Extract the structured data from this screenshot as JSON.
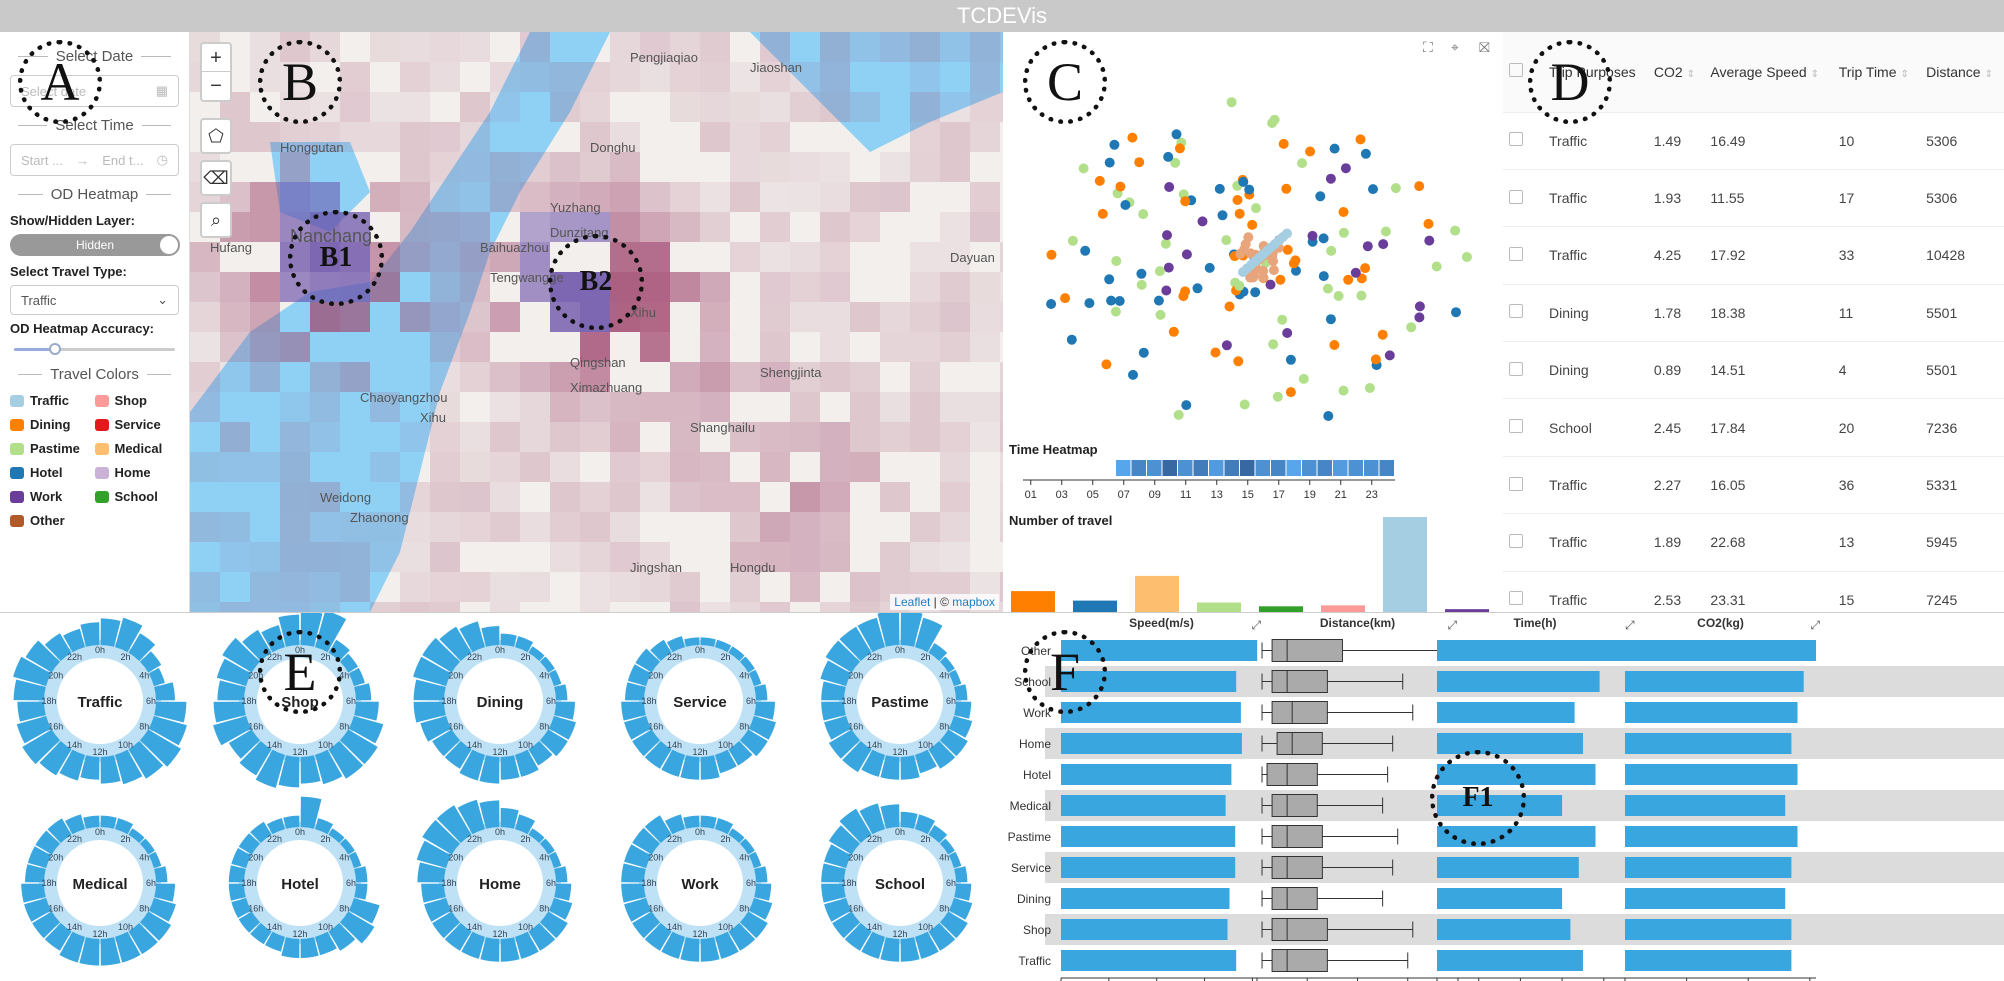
{
  "app": {
    "title": "TCDEVis"
  },
  "controls": {
    "select_date_title": "Select Date",
    "date_placeholder": "Select date",
    "select_time_title": "Select Time",
    "time_start": "Start ...",
    "time_arrow": "→",
    "time_end": "End t...",
    "od_heatmap_title": "OD Heatmap",
    "show_hidden_label": "Show/Hidden Layer:",
    "toggle_value": "Hidden",
    "travel_type_label": "Select Travel Type:",
    "travel_type_value": "Traffic",
    "accuracy_label": "OD Heatmap Accuracy:",
    "accuracy_level": 0.25,
    "travel_colors_title": "Travel Colors"
  },
  "categories": [
    {
      "name": "Traffic",
      "color": "#a6cee3"
    },
    {
      "name": "Shop",
      "color": "#fb9a99"
    },
    {
      "name": "Dining",
      "color": "#ff7f00"
    },
    {
      "name": "Service",
      "color": "#e31a1c"
    },
    {
      "name": "Pastime",
      "color": "#b2df8a"
    },
    {
      "name": "Medical",
      "color": "#fdbf6f"
    },
    {
      "name": "Hotel",
      "color": "#1f78b4"
    },
    {
      "name": "Home",
      "color": "#cab2d6"
    },
    {
      "name": "Work",
      "color": "#6a3d9a"
    },
    {
      "name": "School",
      "color": "#33a02c"
    },
    {
      "name": "Other",
      "color": "#b15928"
    }
  ],
  "map": {
    "zoom_in": "+",
    "zoom_out": "−",
    "place_labels": [
      "Pengjiaqiao",
      "Jiaoshan",
      "Honggutan",
      "Donghu",
      "Nanchang",
      "Yuzhang",
      "Dunzitang",
      "Baihuazhou",
      "Tengwangge",
      "Xihu",
      "Dayuan",
      "Qingshan",
      "Ximazhuang",
      "Shengjinta",
      "Hufang",
      "Chaoyangzhou",
      "Xihu",
      "Shanghailu",
      "Weidong",
      "Zhaonong",
      "Jingshan",
      "Hongdu"
    ],
    "attribution_leaflet": "Leaflet",
    "attribution_sep": " | © ",
    "attribution_mapbox": "mapbox"
  },
  "time_heatmap": {
    "title": "Time Heatmap",
    "ticks": [
      "01",
      "03",
      "05",
      "07",
      "09",
      "11",
      "13",
      "15",
      "17",
      "19",
      "21",
      "23"
    ],
    "values": [
      0,
      0,
      0,
      0,
      0,
      0,
      0.3,
      0.6,
      0.5,
      0.9,
      0.5,
      0.7,
      0.4,
      0.7,
      0.9,
      0.5,
      0.6,
      0.3,
      0.5,
      0.6,
      0.4,
      0.5,
      0.5,
      0.6
    ]
  },
  "number_of_travel": {
    "title": "Number of travel",
    "values": [
      {
        "category": "Dining",
        "value": 22
      },
      {
        "category": "Hotel",
        "value": 12
      },
      {
        "category": "Medical",
        "value": 38
      },
      {
        "category": "Pastime",
        "value": 10
      },
      {
        "category": "School",
        "value": 6
      },
      {
        "category": "Shop",
        "value": 7
      },
      {
        "category": "Traffic",
        "value": 100
      },
      {
        "category": "Work",
        "value": 3
      }
    ]
  },
  "table": {
    "headers": [
      "Trip Purposes",
      "CO2",
      "Average Speed",
      "Trip Time",
      "Distance"
    ],
    "rows": [
      [
        "Traffic",
        "1.49",
        "16.49",
        "10",
        "5306"
      ],
      [
        "Traffic",
        "1.93",
        "11.55",
        "17",
        "5306"
      ],
      [
        "Traffic",
        "4.25",
        "17.92",
        "33",
        "10428"
      ],
      [
        "Dining",
        "1.78",
        "18.38",
        "11",
        "5501"
      ],
      [
        "Dining",
        "0.89",
        "14.51",
        "4",
        "5501"
      ],
      [
        "School",
        "2.45",
        "17.84",
        "20",
        "7236"
      ],
      [
        "Traffic",
        "2.27",
        "16.05",
        "36",
        "5331"
      ],
      [
        "Traffic",
        "1.89",
        "22.68",
        "13",
        "5945"
      ],
      [
        "Traffic",
        "2.53",
        "23.31",
        "15",
        "7245"
      ]
    ]
  },
  "radial": {
    "hour_labels": [
      "0h",
      "2h",
      "4h",
      "6h",
      "8h",
      "10h",
      "12h",
      "14h",
      "16h",
      "18h",
      "20h",
      "22h"
    ],
    "charts": [
      {
        "name": "Traffic",
        "values": [
          0.7,
          0.8,
          0.6,
          0.4,
          0.3,
          0.5,
          0.8,
          0.9,
          1.0,
          0.9,
          0.8,
          0.7,
          0.6,
          0.7,
          0.8,
          0.9,
          0.8,
          0.7,
          0.8,
          0.9,
          0.8,
          0.6,
          0.5,
          0.6
        ]
      },
      {
        "name": "Shop",
        "values": [
          0.9,
          1.0,
          0.4,
          0.3,
          0.3,
          0.4,
          0.6,
          0.8,
          0.9,
          0.9,
          0.8,
          0.7,
          0.8,
          0.9,
          0.8,
          0.7,
          0.9,
          0.8,
          0.7,
          0.8,
          0.9,
          0.7,
          0.6,
          0.8
        ]
      },
      {
        "name": "Dining",
        "values": [
          0.3,
          0.3,
          0.2,
          0.2,
          0.2,
          0.3,
          0.5,
          0.6,
          0.6,
          0.5,
          0.6,
          0.6,
          0.7,
          0.7,
          0.6,
          0.6,
          0.7,
          0.8,
          0.8,
          0.9,
          0.9,
          0.8,
          0.7,
          0.5
        ]
      },
      {
        "name": "Service",
        "values": [
          0.2,
          0.2,
          0.2,
          0.2,
          0.2,
          0.3,
          0.5,
          0.6,
          0.6,
          0.5,
          0.5,
          0.6,
          0.6,
          0.6,
          0.6,
          0.6,
          0.6,
          0.6,
          0.5,
          0.5,
          0.5,
          0.4,
          0.3,
          0.2
        ]
      },
      {
        "name": "Pastime",
        "values": [
          0.9,
          0.8,
          0.3,
          0.2,
          0.2,
          0.3,
          0.4,
          0.5,
          0.6,
          0.6,
          0.5,
          0.6,
          0.6,
          0.6,
          0.7,
          0.7,
          0.6,
          0.6,
          0.6,
          0.7,
          0.8,
          0.8,
          0.8,
          0.9
        ]
      },
      {
        "name": "Medical",
        "values": [
          0.3,
          0.3,
          0.2,
          0.2,
          0.2,
          0.3,
          0.5,
          0.6,
          0.7,
          0.7,
          0.7,
          0.7,
          0.7,
          0.7,
          0.6,
          0.6,
          0.6,
          0.6,
          0.5,
          0.5,
          0.5,
          0.5,
          0.4,
          0.3
        ]
      },
      {
        "name": "Hotel",
        "values": [
          0.8,
          0.3,
          0.2,
          0.2,
          0.2,
          0.3,
          0.3,
          0.7,
          0.8,
          0.6,
          0.5,
          0.5,
          0.5,
          0.4,
          0.4,
          0.4,
          0.4,
          0.4,
          0.4,
          0.4,
          0.4,
          0.4,
          0.3,
          0.3
        ]
      },
      {
        "name": "Home",
        "values": [
          0.5,
          0.4,
          0.2,
          0.2,
          0.2,
          0.3,
          0.4,
          0.5,
          0.6,
          0.6,
          0.6,
          0.6,
          0.6,
          0.6,
          0.6,
          0.6,
          0.6,
          0.6,
          0.7,
          0.8,
          0.9,
          0.9,
          0.8,
          0.7
        ]
      },
      {
        "name": "Work",
        "values": [
          0.3,
          0.3,
          0.2,
          0.2,
          0.2,
          0.3,
          0.4,
          0.5,
          0.6,
          0.6,
          0.6,
          0.6,
          0.6,
          0.6,
          0.6,
          0.6,
          0.6,
          0.6,
          0.6,
          0.6,
          0.6,
          0.6,
          0.4,
          0.3
        ]
      },
      {
        "name": "School",
        "values": [
          0.4,
          0.4,
          0.3,
          0.2,
          0.2,
          0.3,
          0.4,
          0.5,
          0.6,
          0.6,
          0.6,
          0.6,
          0.6,
          0.6,
          0.6,
          0.6,
          0.6,
          0.6,
          0.6,
          0.6,
          0.7,
          0.8,
          0.7,
          0.6
        ]
      }
    ]
  },
  "chart_data": [
    {
      "type": "bar",
      "title": "Speed(m/s)",
      "categories": [
        "Other",
        "School",
        "Work",
        "Home",
        "Hotel",
        "Medical",
        "Pastime",
        "Service",
        "Dining",
        "Shop",
        "Traffic"
      ],
      "values": [
        20.5,
        18.3,
        18.8,
        18.9,
        17.8,
        17.2,
        18.2,
        18.2,
        17.6,
        17.4,
        18.3
      ],
      "xticks": [
        "0",
        "5",
        "10",
        "15",
        "20"
      ],
      "xlim": [
        0,
        21
      ]
    },
    {
      "type": "box",
      "title": "Distance(km)",
      "categories": [
        "Other",
        "School",
        "Work",
        "Home",
        "Hotel",
        "Medical",
        "Pastime",
        "Service",
        "Dining",
        "Shop",
        "Traffic"
      ],
      "boxes": [
        {
          "min": 0.5,
          "q1": 1.5,
          "median": 3.0,
          "q3": 8.5,
          "max": 19.5
        },
        {
          "min": 0.5,
          "q1": 1.5,
          "median": 3.0,
          "q3": 7.0,
          "max": 14.5
        },
        {
          "min": 0.5,
          "q1": 1.5,
          "median": 3.5,
          "q3": 7.0,
          "max": 15.5
        },
        {
          "min": 0.5,
          "q1": 2.0,
          "median": 3.5,
          "q3": 6.5,
          "max": 13.5
        },
        {
          "min": 0.5,
          "q1": 1.0,
          "median": 3.0,
          "q3": 6.0,
          "max": 13.0
        },
        {
          "min": 0.5,
          "q1": 1.5,
          "median": 3.0,
          "q3": 6.0,
          "max": 12.5
        },
        {
          "min": 0.5,
          "q1": 1.5,
          "median": 3.0,
          "q3": 6.5,
          "max": 14.0
        },
        {
          "min": 0.5,
          "q1": 1.5,
          "median": 3.0,
          "q3": 6.5,
          "max": 13.5
        },
        {
          "min": 0.5,
          "q1": 1.5,
          "median": 3.0,
          "q3": 6.0,
          "max": 12.5
        },
        {
          "min": 0.5,
          "q1": 1.5,
          "median": 3.0,
          "q3": 7.0,
          "max": 15.5
        },
        {
          "min": 0.5,
          "q1": 1.5,
          "median": 3.0,
          "q3": 7.0,
          "max": 15.0
        }
      ],
      "xticks": [
        "0",
        "5",
        "10",
        "15",
        "20"
      ],
      "xlim": [
        0,
        20
      ]
    },
    {
      "type": "bar",
      "title": "Time(h)",
      "categories": [
        "Other",
        "School",
        "Work",
        "Home",
        "Hotel",
        "Medical",
        "Pastime",
        "Service",
        "Dining",
        "Shop",
        "Traffic"
      ],
      "values": [
        0.47,
        0.39,
        0.33,
        0.35,
        0.38,
        0.3,
        0.38,
        0.34,
        0.3,
        0.32,
        0.35
      ],
      "xticks": [
        "0",
        "0.1",
        "0.2",
        "0.3",
        "0.4"
      ],
      "xlim": [
        0,
        0.47
      ]
    },
    {
      "type": "bar",
      "title": "CO2(kg)",
      "categories": [
        "Other",
        "School",
        "Work",
        "Home",
        "Hotel",
        "Medical",
        "Pastime",
        "Service",
        "Dining",
        "Shop",
        "Traffic"
      ],
      "values": [
        3.1,
        2.9,
        2.8,
        2.7,
        2.8,
        2.6,
        2.8,
        2.7,
        2.6,
        2.7,
        2.7
      ],
      "xticks": [
        "0",
        "1",
        "2",
        "3"
      ],
      "xlim": [
        0,
        3.1
      ]
    }
  ],
  "annotations": [
    "A",
    "B",
    "B1",
    "B2",
    "C",
    "D",
    "E",
    "F",
    "F1"
  ]
}
